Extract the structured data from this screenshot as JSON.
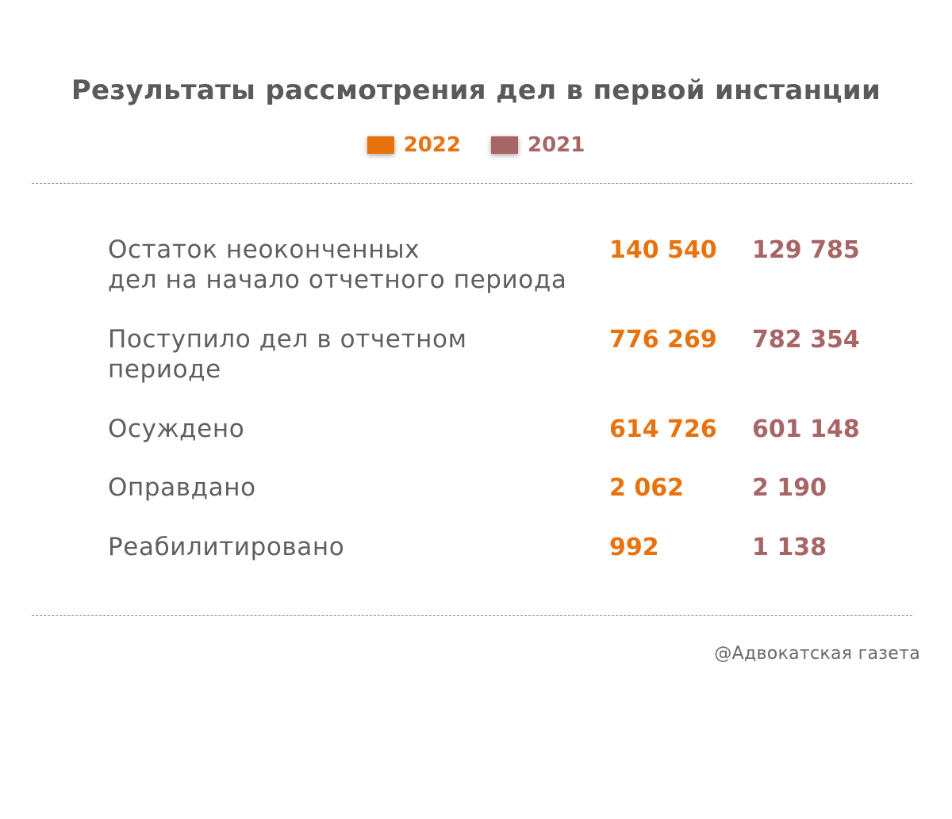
{
  "chart_data": {
    "type": "table",
    "title": "Результаты рассмотрения дел в первой инстанции",
    "legend": [
      {
        "name": "2022",
        "color": "#e8730e"
      },
      {
        "name": "2021",
        "color": "#a86565"
      }
    ],
    "rows": [
      {
        "label": "Остаток неоконченных\nдел на начало отчетного периода",
        "v2022": "140 540",
        "v2021": "129 785"
      },
      {
        "label": "Поступило дел в отчетном\nпериоде",
        "v2022": "776 269",
        "v2021": "782 354"
      },
      {
        "label": "Осуждено",
        "v2022": "614 726",
        "v2021": "601 148"
      },
      {
        "label": "Оправдано",
        "v2022": "2 062",
        "v2021": "2 190"
      },
      {
        "label": "Реабилитировано",
        "v2022": "992",
        "v2021": "1 138"
      }
    ]
  },
  "footer": "@Адвокатская газета"
}
